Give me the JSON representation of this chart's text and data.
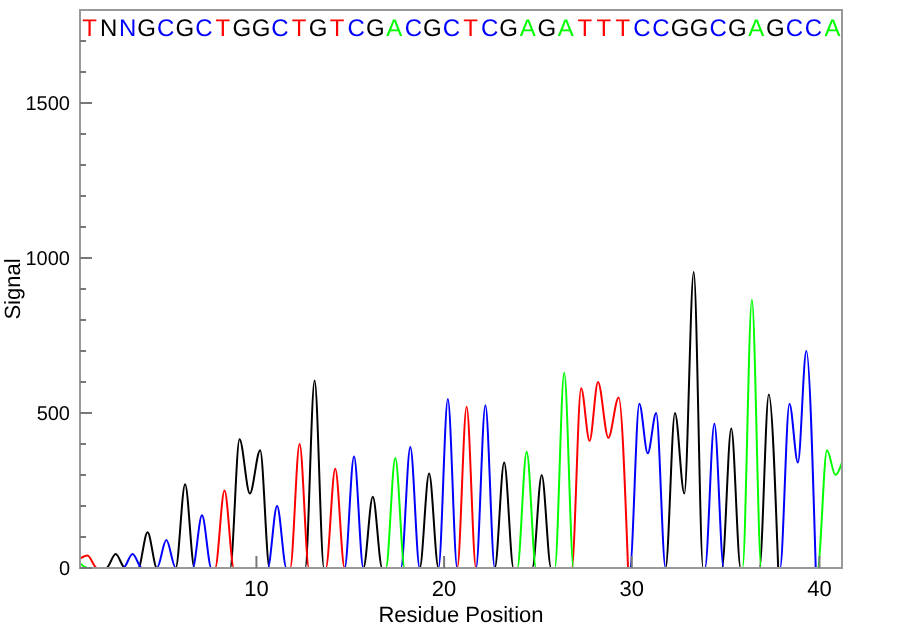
{
  "chart_data": {
    "type": "line",
    "xlabel": "Residue Position",
    "ylabel": "Signal",
    "xlim": [
      0.6,
      41.2
    ],
    "ylim": [
      0,
      1800
    ],
    "xticks": [
      10,
      20,
      30,
      40
    ],
    "yticks": [
      0,
      {
        "value": 100,
        "label": null
      },
      {
        "value": 200,
        "label": null
      },
      {
        "value": 300,
        "label": null
      },
      {
        "value": 400,
        "label": null
      },
      500,
      {
        "value": 600,
        "label": null
      },
      {
        "value": 700,
        "label": null
      },
      {
        "value": 800,
        "label": null
      },
      {
        "value": 900,
        "label": null
      },
      1000,
      {
        "value": 1100,
        "label": null
      },
      {
        "value": 1200,
        "label": null
      },
      {
        "value": 1300,
        "label": null
      },
      {
        "value": 1400,
        "label": null
      },
      1500,
      {
        "value": 1600,
        "label": null
      },
      {
        "value": 1700,
        "label": null
      }
    ],
    "grid": false,
    "marker": "none",
    "line_style": "solid",
    "series": [
      {
        "color": "#000000",
        "x": [
          0.6,
          2.0,
          2.5,
          3.0,
          3.7,
          4.2,
          4.7,
          5.7,
          6.2,
          6.7,
          8.6,
          9.1,
          9.65,
          10.2,
          10.7,
          12.6,
          13.1,
          13.6,
          15.7,
          16.2,
          16.7,
          18.7,
          19.2,
          19.7,
          22.7,
          23.2,
          23.7,
          24.7,
          25.2,
          25.7,
          31.8,
          32.3,
          32.8,
          33.3,
          33.8,
          34.8,
          35.3,
          35.8,
          36.8,
          37.3,
          37.8
        ],
        "values": [
          0,
          0,
          45,
          0,
          0,
          115,
          0,
          0,
          270,
          0,
          0,
          415,
          240,
          380,
          0,
          0,
          605,
          0,
          0,
          230,
          0,
          0,
          305,
          0,
          0,
          340,
          0,
          0,
          300,
          0,
          0,
          500,
          240,
          955,
          0,
          0,
          450,
          0,
          0,
          560,
          0
        ]
      },
      {
        "color": "#ff0000",
        "x": [
          0.6,
          1.0,
          1.5,
          7.8,
          8.3,
          8.8,
          11.8,
          12.3,
          12.8,
          13.7,
          14.2,
          14.7,
          20.7,
          21.2,
          21.7,
          26.8,
          27.3,
          27.75,
          28.2,
          28.75,
          29.3,
          29.8
        ],
        "values": [
          30,
          40,
          0,
          0,
          250,
          0,
          0,
          400,
          0,
          0,
          320,
          0,
          0,
          520,
          0,
          0,
          580,
          410,
          600,
          420,
          550,
          0
        ]
      },
      {
        "color": "#0000ff",
        "x": [
          0.6,
          2.9,
          3.4,
          3.9,
          4.7,
          5.2,
          5.7,
          6.6,
          7.1,
          7.6,
          10.6,
          11.1,
          11.6,
          14.7,
          15.2,
          15.7,
          17.7,
          18.2,
          18.7,
          19.7,
          20.2,
          20.7,
          21.7,
          22.2,
          22.7,
          29.9,
          30.4,
          30.85,
          31.3,
          31.8,
          33.9,
          34.4,
          34.9,
          37.9,
          38.4,
          38.85,
          39.3,
          39.8
        ],
        "values": [
          0,
          0,
          45,
          0,
          0,
          90,
          0,
          0,
          170,
          0,
          0,
          200,
          0,
          0,
          360,
          0,
          0,
          390,
          0,
          0,
          545,
          0,
          0,
          525,
          0,
          0,
          530,
          370,
          500,
          0,
          0,
          465,
          0,
          0,
          530,
          340,
          700,
          0
        ]
      },
      {
        "color": "#00ff00",
        "x": [
          0.6,
          1.0,
          16.9,
          17.4,
          17.9,
          23.9,
          24.4,
          24.9,
          25.9,
          26.4,
          26.9,
          35.9,
          36.4,
          36.9,
          39.9,
          40.4,
          40.85,
          41.2
        ],
        "values": [
          15,
          0,
          0,
          355,
          0,
          0,
          375,
          0,
          0,
          630,
          0,
          0,
          865,
          0,
          0,
          380,
          300,
          340
        ]
      }
    ],
    "annotations": [
      "TNNGCGCTGGCTGTCGACGCTCGAGATTTCCGGCGAGCCA"
    ]
  }
}
